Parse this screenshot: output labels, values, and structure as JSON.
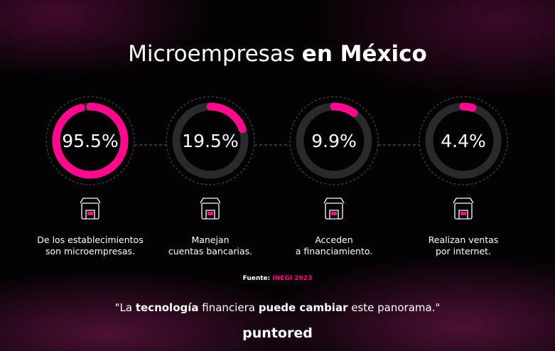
{
  "title": [
    {
      "text": "Microempresas ",
      "bold": false
    },
    {
      "text": "en México",
      "bold": true
    }
  ],
  "items": [
    {
      "value": 95.5,
      "value_label": "95.5%",
      "description": [
        "De los  establecimientos",
        "son microempresas."
      ]
    },
    {
      "value": 19.5,
      "value_label": "19.5%",
      "description": [
        "Manejan",
        "cuentas bancarias."
      ]
    },
    {
      "value": 9.9,
      "value_label": "9.9%",
      "description": [
        "Acceden",
        "a financiamiento."
      ]
    },
    {
      "value": 4.4,
      "value_label": "4.4%",
      "description": [
        "Realizan ventas",
        "por internet."
      ]
    }
  ],
  "source": {
    "label": "Fuente: ",
    "name": "INEGI 2023"
  },
  "quote": [
    {
      "text": "\"La ",
      "bold": false
    },
    {
      "text": "tecnología",
      "bold": true
    },
    {
      "text": " financiera ",
      "bold": false
    },
    {
      "text": "puede cambiar",
      "bold": true
    },
    {
      "text": " este panorama.\"",
      "bold": false
    }
  ],
  "logo": "puntored",
  "color": "#ff0a8c"
}
